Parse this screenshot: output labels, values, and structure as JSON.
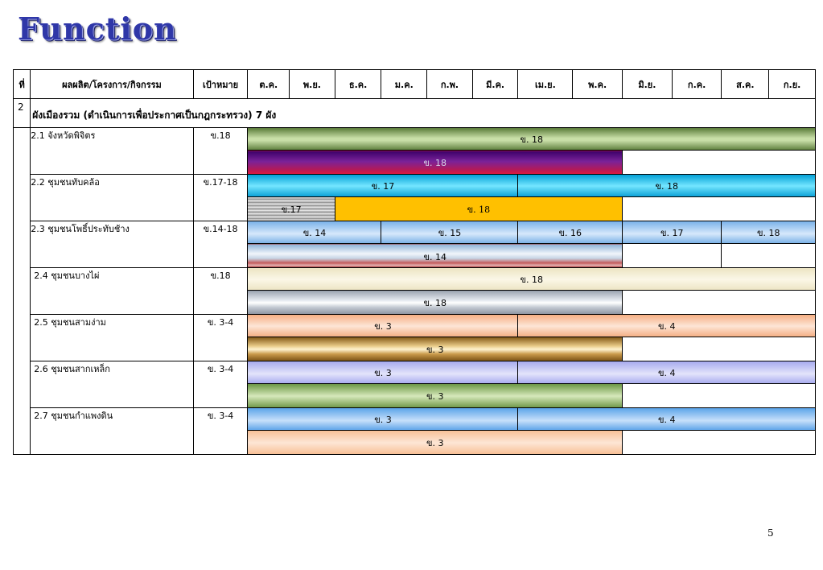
{
  "title": "Function",
  "page_number": "5",
  "table": {
    "headers": {
      "num": "ที่",
      "item": "ผลผลิต/โครงการ/กิจกรรม",
      "target": "เป้าหมาย",
      "months": [
        "ต.ค.",
        "พ.ย.",
        "ธ.ค.",
        "ม.ค.",
        "ก.พ.",
        "มี.ค.",
        "เม.ย.",
        "พ.ค.",
        "มิ.ย.",
        "ก.ค.",
        "ส.ค.",
        "ก.ย."
      ]
    },
    "section": {
      "num": "2",
      "title": "ผังเมืองรวม (ดำเนินการเพื่อประกาศเป็นกฎกระทรวง)  7 ผัง"
    },
    "rows": [
      {
        "item": "2.1 จังหวัดพิจิตร",
        "target": "ข.18",
        "bars1": [
          "ข. 18"
        ],
        "bars2": [
          "ข. 18"
        ]
      },
      {
        "item": "2.2 ชุมชนทับคล้อ",
        "target": "ข.17-18",
        "bars1": [
          "ข. 17",
          "ข. 18"
        ],
        "bars2": [
          "ข.17",
          "ข. 18"
        ]
      },
      {
        "item": "2.3 ชุมชนโพธิ์ประทับช้าง",
        "target": "ข.14-18",
        "bars1": [
          "ข. 14",
          "ข. 15",
          "ข. 16",
          "ข. 17",
          "ข. 18"
        ],
        "bars2": [
          "ข. 14"
        ]
      },
      {
        "item": "2.4 ชุมชนบางไผ่",
        "target": "ข.18",
        "bars1": [
          "ข. 18"
        ],
        "bars2": [
          "ข. 18"
        ]
      },
      {
        "item": "2.5 ชุมชนสามง่าม",
        "target": "ข. 3-4",
        "bars1": [
          "ข. 3",
          "ข. 4"
        ],
        "bars2": [
          "ข. 3"
        ]
      },
      {
        "item": "2.6 ชุมชนสากเหล็ก",
        "target": "ข. 3-4",
        "bars1": [
          "ข. 3",
          "ข. 4"
        ],
        "bars2": [
          "ข. 3"
        ]
      },
      {
        "item": "2.7 ชุมชนกำแพงดิน",
        "target": "ข. 3-4",
        "bars1": [
          "ข. 3",
          "ข. 4"
        ],
        "bars2": [
          "ข. 3"
        ]
      }
    ]
  }
}
